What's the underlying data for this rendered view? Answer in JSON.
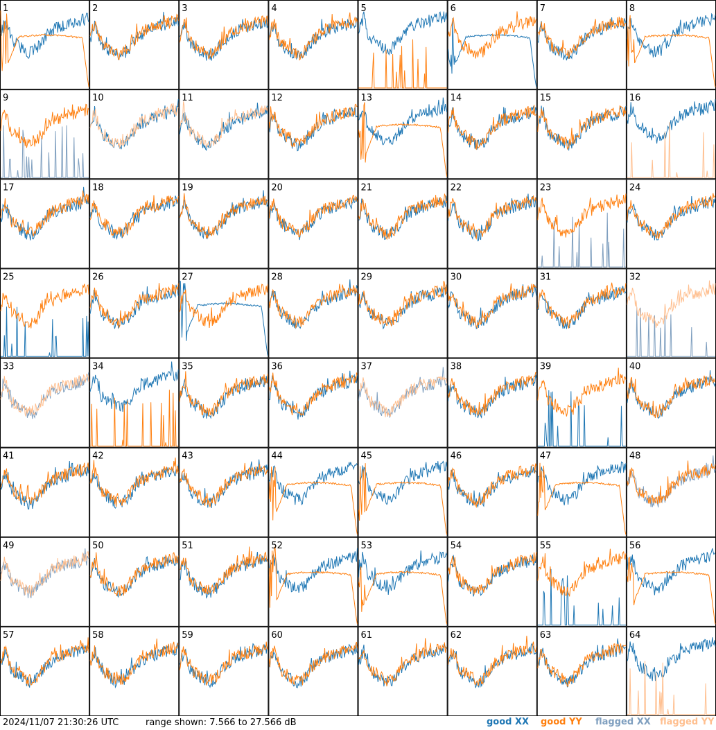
{
  "chart_data": {
    "type": "line",
    "panels": [
      {
        "label": "1",
        "shape": "abn",
        "xx": "good",
        "yy": "good"
      },
      {
        "label": "2",
        "shape": "norm",
        "xx": "good",
        "yy": "good"
      },
      {
        "label": "3",
        "shape": "norm",
        "xx": "good",
        "yy": "good"
      },
      {
        "label": "4",
        "shape": "norm",
        "xx": "good",
        "yy": "good"
      },
      {
        "label": "5",
        "shape": "xxonly",
        "xx": "good",
        "yy": "spikes"
      },
      {
        "label": "6",
        "shape": "abnx",
        "xx": "good",
        "yy": "good"
      },
      {
        "label": "7",
        "shape": "norm",
        "xx": "good",
        "yy": "good"
      },
      {
        "label": "8",
        "shape": "abn",
        "xx": "good",
        "yy": "good"
      },
      {
        "label": "9",
        "shape": "yyonly",
        "xx": "flagged-spikes",
        "yy": "good"
      },
      {
        "label": "10",
        "shape": "norm",
        "xx": "good",
        "yy": "flagged"
      },
      {
        "label": "11",
        "shape": "norm",
        "xx": "good",
        "yy": "flagged"
      },
      {
        "label": "12",
        "shape": "norm",
        "xx": "good",
        "yy": "good"
      },
      {
        "label": "13",
        "shape": "abn",
        "xx": "good",
        "yy": "good"
      },
      {
        "label": "14",
        "shape": "norm",
        "xx": "good",
        "yy": "good"
      },
      {
        "label": "15",
        "shape": "norm",
        "xx": "good",
        "yy": "good"
      },
      {
        "label": "16",
        "shape": "xxonly",
        "xx": "good",
        "yy": "flagged-spikes"
      },
      {
        "label": "17",
        "shape": "norm",
        "xx": "good",
        "yy": "good"
      },
      {
        "label": "18",
        "shape": "norm",
        "xx": "good",
        "yy": "good"
      },
      {
        "label": "19",
        "shape": "norm",
        "xx": "good",
        "yy": "good"
      },
      {
        "label": "20",
        "shape": "norm",
        "xx": "good",
        "yy": "good"
      },
      {
        "label": "21",
        "shape": "norm",
        "xx": "good",
        "yy": "good"
      },
      {
        "label": "22",
        "shape": "norm",
        "xx": "good",
        "yy": "good"
      },
      {
        "label": "23",
        "shape": "yyonly",
        "xx": "flagged-spikes",
        "yy": "good"
      },
      {
        "label": "24",
        "shape": "norm",
        "xx": "good",
        "yy": "good"
      },
      {
        "label": "25",
        "shape": "yyonly",
        "xx": "spikes",
        "yy": "good"
      },
      {
        "label": "26",
        "shape": "norm",
        "xx": "good",
        "yy": "good"
      },
      {
        "label": "27",
        "shape": "abnx",
        "xx": "good",
        "yy": "good"
      },
      {
        "label": "28",
        "shape": "norm",
        "xx": "good",
        "yy": "good"
      },
      {
        "label": "29",
        "shape": "norm",
        "xx": "good",
        "yy": "good"
      },
      {
        "label": "30",
        "shape": "norm",
        "xx": "good",
        "yy": "good"
      },
      {
        "label": "31",
        "shape": "norm",
        "xx": "good",
        "yy": "good"
      },
      {
        "label": "32",
        "shape": "yyonly",
        "xx": "flagged-spikes",
        "yy": "flagged"
      },
      {
        "label": "33",
        "shape": "norm",
        "xx": "flagged",
        "yy": "flagged"
      },
      {
        "label": "34",
        "shape": "xxonly",
        "xx": "good",
        "yy": "spikes"
      },
      {
        "label": "35",
        "shape": "norm",
        "xx": "good",
        "yy": "good"
      },
      {
        "label": "36",
        "shape": "norm",
        "xx": "good",
        "yy": "good"
      },
      {
        "label": "37",
        "shape": "norm",
        "xx": "flagged",
        "yy": "flagged"
      },
      {
        "label": "38",
        "shape": "norm",
        "xx": "good",
        "yy": "good"
      },
      {
        "label": "39",
        "shape": "yyonly",
        "xx": "spikes",
        "yy": "good"
      },
      {
        "label": "40",
        "shape": "norm",
        "xx": "good",
        "yy": "good"
      },
      {
        "label": "41",
        "shape": "norm",
        "xx": "good",
        "yy": "good"
      },
      {
        "label": "42",
        "shape": "norm",
        "xx": "good",
        "yy": "good"
      },
      {
        "label": "43",
        "shape": "norm",
        "xx": "good",
        "yy": "good"
      },
      {
        "label": "44",
        "shape": "abn",
        "xx": "good",
        "yy": "good"
      },
      {
        "label": "45",
        "shape": "abn",
        "xx": "good",
        "yy": "good"
      },
      {
        "label": "46",
        "shape": "norm",
        "xx": "good",
        "yy": "good"
      },
      {
        "label": "47",
        "shape": "abn",
        "xx": "good",
        "yy": "good"
      },
      {
        "label": "48",
        "shape": "norm",
        "xx": "flagged",
        "yy": "good"
      },
      {
        "label": "49",
        "shape": "norm",
        "xx": "flagged",
        "yy": "flagged"
      },
      {
        "label": "50",
        "shape": "norm",
        "xx": "good",
        "yy": "good"
      },
      {
        "label": "51",
        "shape": "norm",
        "xx": "good",
        "yy": "good"
      },
      {
        "label": "52",
        "shape": "abn",
        "xx": "good",
        "yy": "good"
      },
      {
        "label": "53",
        "shape": "abn",
        "xx": "good",
        "yy": "good"
      },
      {
        "label": "54",
        "shape": "norm",
        "xx": "good",
        "yy": "good"
      },
      {
        "label": "55",
        "shape": "yyonly",
        "xx": "spikes",
        "yy": "good"
      },
      {
        "label": "56",
        "shape": "abn",
        "xx": "good",
        "yy": "good"
      },
      {
        "label": "57",
        "shape": "norm",
        "xx": "good",
        "yy": "good"
      },
      {
        "label": "58",
        "shape": "norm",
        "xx": "good",
        "yy": "good"
      },
      {
        "label": "59",
        "shape": "norm",
        "xx": "good",
        "yy": "good"
      },
      {
        "label": "60",
        "shape": "norm",
        "xx": "good",
        "yy": "good"
      },
      {
        "label": "61",
        "shape": "norm",
        "xx": "good",
        "yy": "good"
      },
      {
        "label": "62",
        "shape": "norm",
        "xx": "good",
        "yy": "good"
      },
      {
        "label": "63",
        "shape": "norm",
        "xx": "good",
        "yy": "good"
      },
      {
        "label": "64",
        "shape": "xxonly",
        "xx": "good",
        "yy": "flagged-spikes"
      }
    ],
    "range_db": [
      7.566,
      27.566
    ],
    "colors": {
      "good_xx": "#1f77b4",
      "good_yy": "#ff7f0e",
      "flagged_xx": "#7f9fbf",
      "flagged_yy": "#ffbf8f"
    }
  },
  "footer": {
    "timestamp": "2024/11/07 21:30:26 UTC",
    "range": "range shown: 7.566 to 27.566 dB",
    "legend": {
      "good_xx_word": "good",
      "good_yy_word": "good",
      "flagged_xx_word": "flagged",
      "flagged_yy_word": "flagged",
      "xx": "XX",
      "yy": "YY"
    }
  }
}
